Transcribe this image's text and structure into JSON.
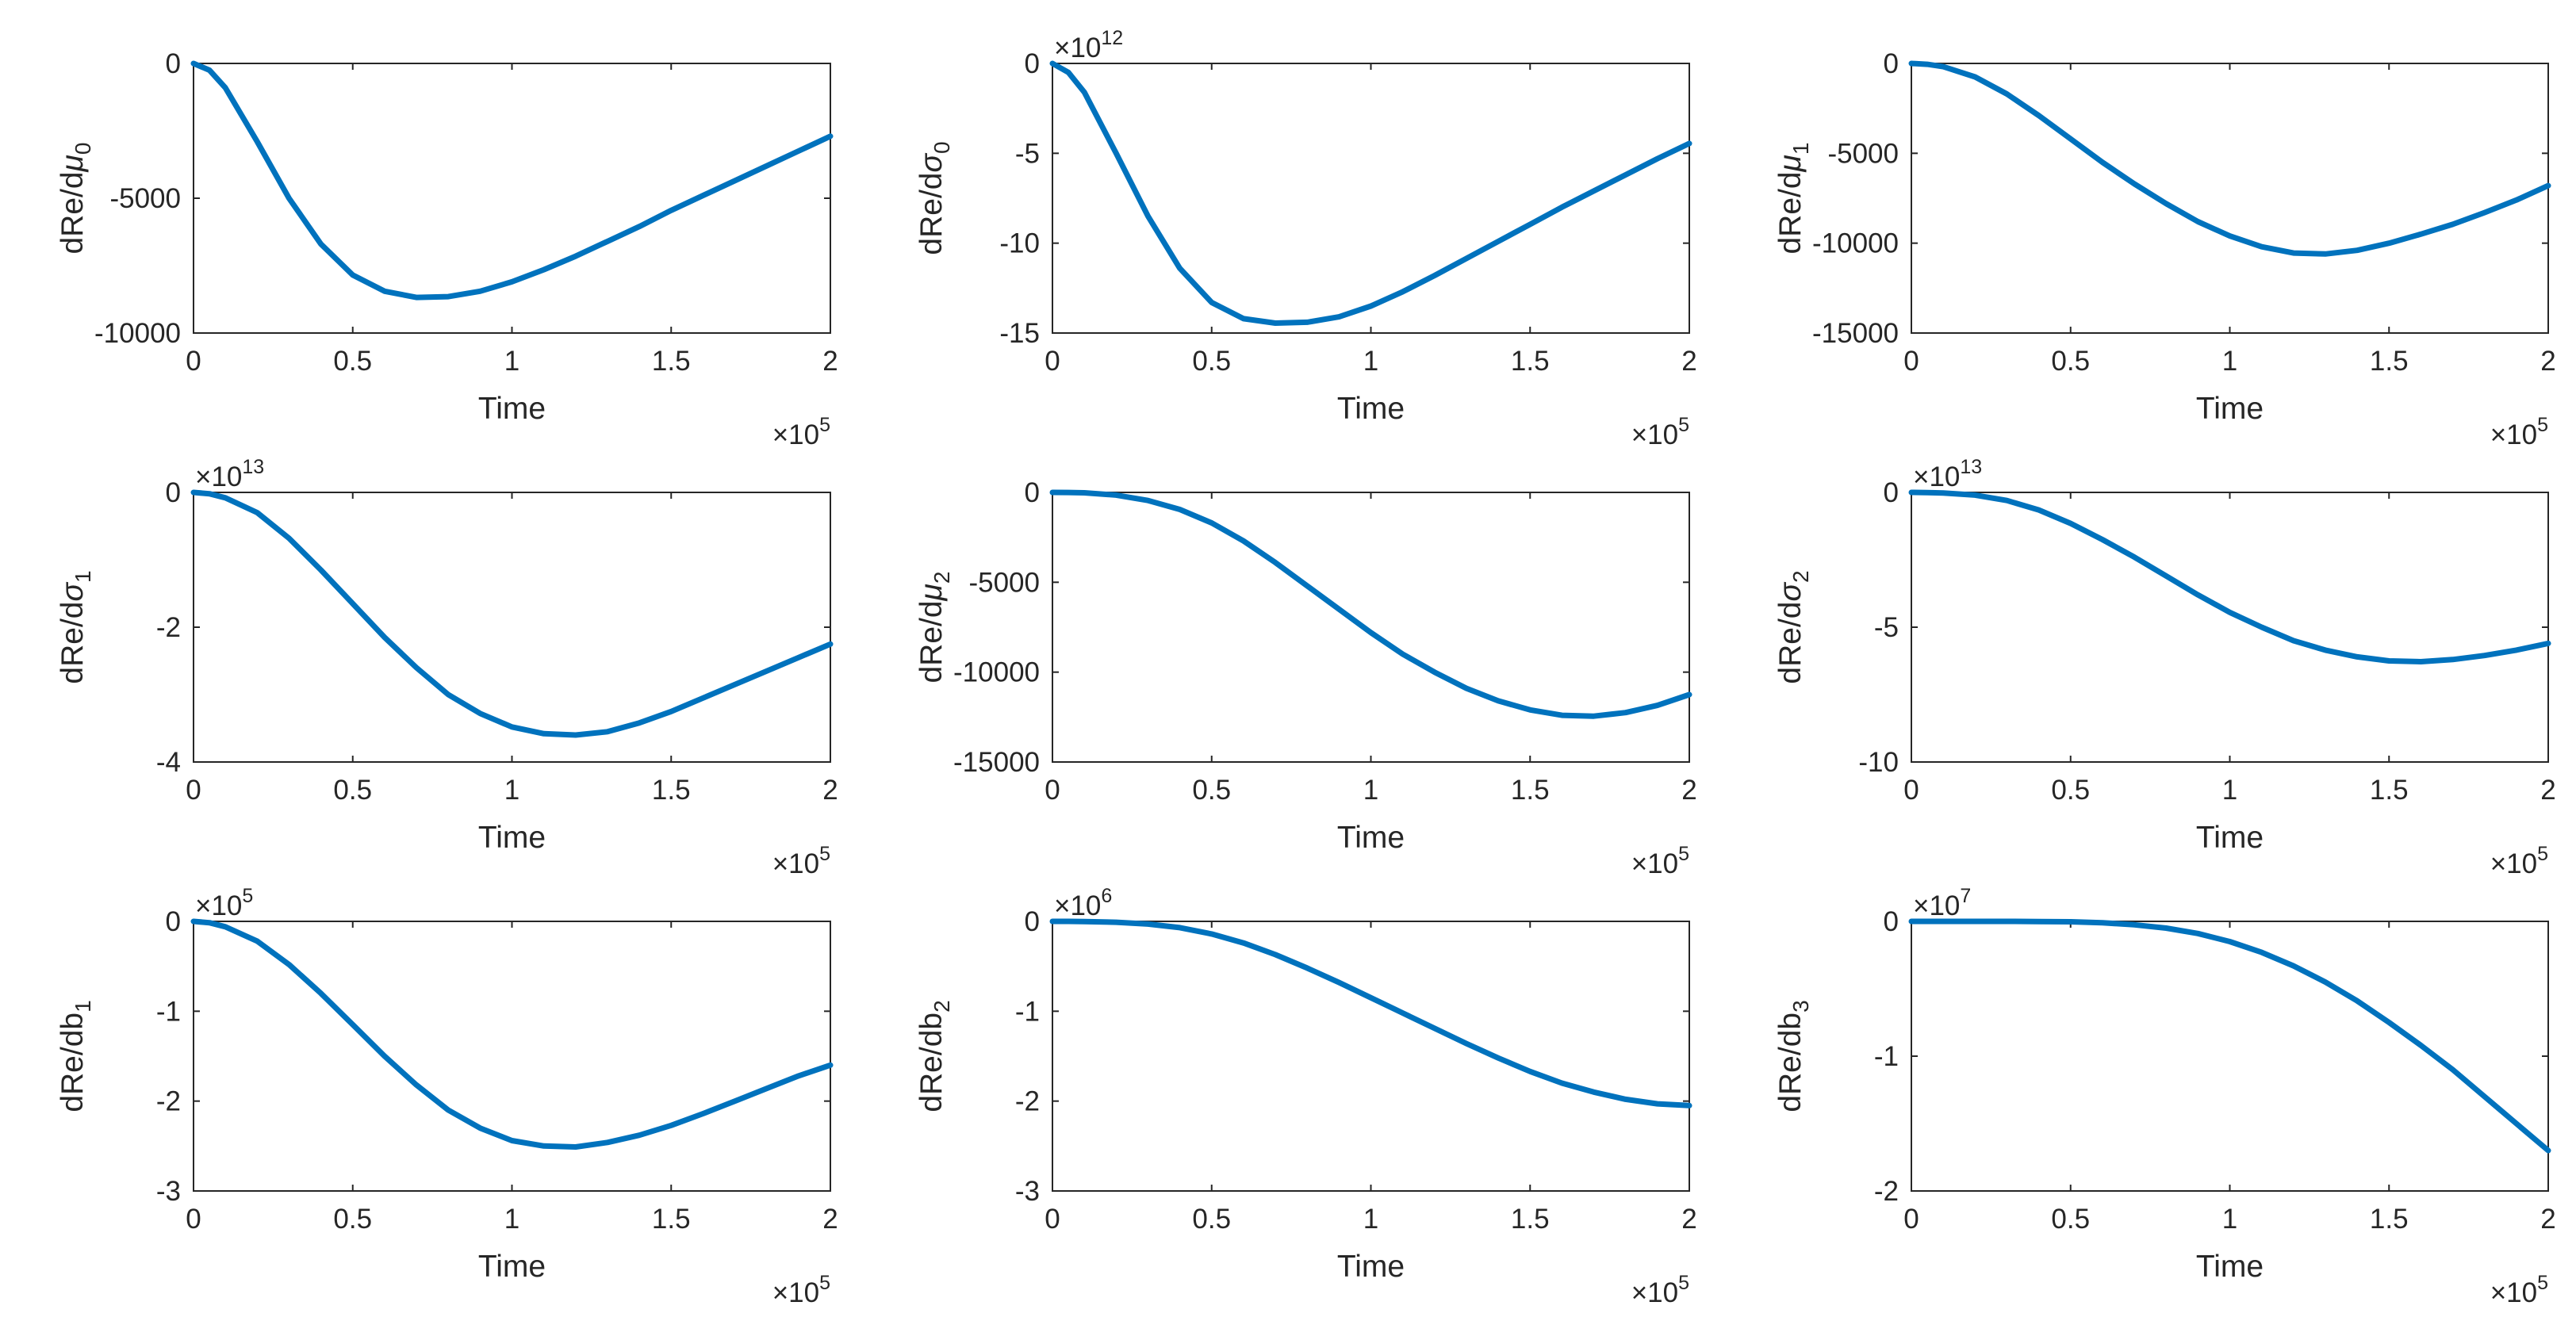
{
  "figure": {
    "series_color": "#0072BD",
    "axis_color": "#262626",
    "background": "#ffffff"
  },
  "chart_data": [
    {
      "type": "line",
      "ylabel_base": "dRe/d",
      "ylabel_symbol": "μ",
      "ylabel_sub": "0",
      "xlabel": "Time",
      "x_exponent": "5",
      "y_exponent": "",
      "xlim": [
        0,
        2
      ],
      "ylim": [
        -10000,
        0
      ],
      "xticks": [
        0,
        0.5,
        1,
        1.5,
        2
      ],
      "xtick_labels": [
        "0",
        "0.5",
        "1",
        "1.5",
        "2"
      ],
      "yticks": [
        -10000,
        -5000,
        0
      ],
      "ytick_labels": [
        "-10000",
        "-5000",
        "0"
      ],
      "x": [
        0,
        0.05,
        0.1,
        0.2,
        0.3,
        0.4,
        0.5,
        0.6,
        0.7,
        0.8,
        0.9,
        1.0,
        1.1,
        1.2,
        1.3,
        1.4,
        1.5,
        1.6,
        1.7,
        1.8,
        1.9,
        2.0
      ],
      "y": [
        0,
        -250,
        -900,
        -2900,
        -5000,
        -6700,
        -7850,
        -8450,
        -8680,
        -8650,
        -8450,
        -8100,
        -7650,
        -7150,
        -6600,
        -6050,
        -5450,
        -4900,
        -4350,
        -3800,
        -3250,
        -2700
      ]
    },
    {
      "type": "line",
      "ylabel_base": "dRe/d",
      "ylabel_symbol": "σ",
      "ylabel_sub": "0",
      "xlabel": "Time",
      "x_exponent": "5",
      "y_exponent": "12",
      "xlim": [
        0,
        2
      ],
      "ylim": [
        -15,
        0
      ],
      "xticks": [
        0,
        0.5,
        1,
        1.5,
        2
      ],
      "xtick_labels": [
        "0",
        "0.5",
        "1",
        "1.5",
        "2"
      ],
      "yticks": [
        -15,
        -10,
        -5,
        0
      ],
      "ytick_labels": [
        "-15",
        "-10",
        "-5",
        "0"
      ],
      "x": [
        0,
        0.05,
        0.1,
        0.2,
        0.3,
        0.4,
        0.5,
        0.6,
        0.7,
        0.8,
        0.9,
        1.0,
        1.1,
        1.2,
        1.3,
        1.4,
        1.5,
        1.6,
        1.7,
        1.8,
        1.9,
        2.0
      ],
      "y": [
        0,
        -0.5,
        -1.6,
        -5.0,
        -8.5,
        -11.4,
        -13.3,
        -14.2,
        -14.45,
        -14.4,
        -14.1,
        -13.5,
        -12.7,
        -11.8,
        -10.85,
        -9.9,
        -8.95,
        -8.0,
        -7.1,
        -6.2,
        -5.3,
        -4.45
      ]
    },
    {
      "type": "line",
      "ylabel_base": "dRe/d",
      "ylabel_symbol": "μ",
      "ylabel_sub": "1",
      "xlabel": "Time",
      "x_exponent": "5",
      "y_exponent": "",
      "xlim": [
        0,
        2
      ],
      "ylim": [
        -15000,
        0
      ],
      "xticks": [
        0,
        0.5,
        1,
        1.5,
        2
      ],
      "xtick_labels": [
        "0",
        "0.5",
        "1",
        "1.5",
        "2"
      ],
      "yticks": [
        -15000,
        -10000,
        -5000,
        0
      ],
      "ytick_labels": [
        "-15000",
        "-10000",
        "-5000",
        "0"
      ],
      "x": [
        0,
        0.05,
        0.1,
        0.2,
        0.3,
        0.4,
        0.5,
        0.6,
        0.7,
        0.8,
        0.9,
        1.0,
        1.1,
        1.2,
        1.3,
        1.4,
        1.5,
        1.6,
        1.7,
        1.8,
        1.9,
        2.0
      ],
      "y": [
        0,
        -50,
        -180,
        -750,
        -1700,
        -2900,
        -4200,
        -5500,
        -6700,
        -7800,
        -8800,
        -9600,
        -10200,
        -10550,
        -10600,
        -10400,
        -10000,
        -9500,
        -8950,
        -8300,
        -7600,
        -6800
      ]
    },
    {
      "type": "line",
      "ylabel_base": "dRe/d",
      "ylabel_symbol": "σ",
      "ylabel_sub": "1",
      "xlabel": "Time",
      "x_exponent": "5",
      "y_exponent": "13",
      "xlim": [
        0,
        2
      ],
      "ylim": [
        -4,
        0
      ],
      "xticks": [
        0,
        0.5,
        1,
        1.5,
        2
      ],
      "xtick_labels": [
        "0",
        "0.5",
        "1",
        "1.5",
        "2"
      ],
      "yticks": [
        -4,
        -2,
        0
      ],
      "ytick_labels": [
        "-4",
        "-2",
        "0"
      ],
      "x": [
        0,
        0.05,
        0.1,
        0.2,
        0.3,
        0.4,
        0.5,
        0.6,
        0.7,
        0.8,
        0.9,
        1.0,
        1.1,
        1.2,
        1.3,
        1.4,
        1.5,
        1.6,
        1.7,
        1.8,
        1.9,
        2.0
      ],
      "y": [
        0,
        -0.02,
        -0.08,
        -0.3,
        -0.68,
        -1.15,
        -1.65,
        -2.15,
        -2.6,
        -3.0,
        -3.28,
        -3.48,
        -3.58,
        -3.6,
        -3.55,
        -3.42,
        -3.25,
        -3.05,
        -2.85,
        -2.65,
        -2.45,
        -2.25
      ]
    },
    {
      "type": "line",
      "ylabel_base": "dRe/d",
      "ylabel_symbol": "μ",
      "ylabel_sub": "2",
      "xlabel": "Time",
      "x_exponent": "5",
      "y_exponent": "",
      "xlim": [
        0,
        2
      ],
      "ylim": [
        -15000,
        0
      ],
      "xticks": [
        0,
        0.5,
        1,
        1.5,
        2
      ],
      "xtick_labels": [
        "0",
        "0.5",
        "1",
        "1.5",
        "2"
      ],
      "yticks": [
        -15000,
        -10000,
        -5000,
        0
      ],
      "ytick_labels": [
        "-15000",
        "-10000",
        "-5000",
        "0"
      ],
      "x": [
        0,
        0.05,
        0.1,
        0.2,
        0.3,
        0.4,
        0.5,
        0.6,
        0.7,
        0.8,
        0.9,
        1.0,
        1.1,
        1.2,
        1.3,
        1.4,
        1.5,
        1.6,
        1.7,
        1.8,
        1.9,
        2.0
      ],
      "y": [
        0,
        -5,
        -20,
        -150,
        -450,
        -950,
        -1700,
        -2700,
        -3900,
        -5200,
        -6500,
        -7800,
        -9000,
        -10000,
        -10900,
        -11600,
        -12100,
        -12400,
        -12450,
        -12250,
        -11850,
        -11250
      ]
    },
    {
      "type": "line",
      "ylabel_base": "dRe/d",
      "ylabel_symbol": "σ",
      "ylabel_sub": "2",
      "xlabel": "Time",
      "x_exponent": "5",
      "y_exponent": "13",
      "xlim": [
        0,
        2
      ],
      "ylim": [
        -10,
        0
      ],
      "xticks": [
        0,
        0.5,
        1,
        1.5,
        2
      ],
      "xtick_labels": [
        "0",
        "0.5",
        "1",
        "1.5",
        "2"
      ],
      "yticks": [
        -10,
        -5,
        0
      ],
      "ytick_labels": [
        "-10",
        "-5",
        "0"
      ],
      "x": [
        0,
        0.05,
        0.1,
        0.2,
        0.3,
        0.4,
        0.5,
        0.6,
        0.7,
        0.8,
        0.9,
        1.0,
        1.1,
        1.2,
        1.3,
        1.4,
        1.5,
        1.6,
        1.7,
        1.8,
        1.9,
        2.0
      ],
      "y": [
        0,
        -0.005,
        -0.02,
        -0.1,
        -0.3,
        -0.65,
        -1.15,
        -1.75,
        -2.4,
        -3.1,
        -3.8,
        -4.45,
        -5.0,
        -5.5,
        -5.85,
        -6.1,
        -6.25,
        -6.28,
        -6.2,
        -6.05,
        -5.85,
        -5.6
      ]
    },
    {
      "type": "line",
      "ylabel_base": "dRe/db",
      "ylabel_symbol": "",
      "ylabel_sub": "1",
      "xlabel": "Time",
      "x_exponent": "5",
      "y_exponent": "5",
      "xlim": [
        0,
        2
      ],
      "ylim": [
        -3,
        0
      ],
      "xticks": [
        0,
        0.5,
        1,
        1.5,
        2
      ],
      "xtick_labels": [
        "0",
        "0.5",
        "1",
        "1.5",
        "2"
      ],
      "yticks": [
        -3,
        -2,
        -1,
        0
      ],
      "ytick_labels": [
        "-3",
        "-2",
        "-1",
        "0"
      ],
      "x": [
        0,
        0.05,
        0.1,
        0.2,
        0.3,
        0.4,
        0.5,
        0.6,
        0.7,
        0.8,
        0.9,
        1.0,
        1.1,
        1.2,
        1.3,
        1.4,
        1.5,
        1.6,
        1.7,
        1.8,
        1.9,
        2.0
      ],
      "y": [
        0,
        -0.015,
        -0.06,
        -0.22,
        -0.48,
        -0.8,
        -1.15,
        -1.5,
        -1.82,
        -2.1,
        -2.3,
        -2.44,
        -2.5,
        -2.51,
        -2.46,
        -2.38,
        -2.27,
        -2.14,
        -2.0,
        -1.86,
        -1.72,
        -1.6
      ]
    },
    {
      "type": "line",
      "ylabel_base": "dRe/db",
      "ylabel_symbol": "",
      "ylabel_sub": "2",
      "xlabel": "Time",
      "x_exponent": "5",
      "y_exponent": "6",
      "xlim": [
        0,
        2
      ],
      "ylim": [
        -3,
        0
      ],
      "xticks": [
        0,
        0.5,
        1,
        1.5,
        2
      ],
      "xtick_labels": [
        "0",
        "0.5",
        "1",
        "1.5",
        "2"
      ],
      "yticks": [
        -3,
        -2,
        -1,
        0
      ],
      "ytick_labels": [
        "-3",
        "-2",
        "-1",
        "0"
      ],
      "x": [
        0,
        0.05,
        0.1,
        0.2,
        0.3,
        0.4,
        0.5,
        0.6,
        0.7,
        0.8,
        0.9,
        1.0,
        1.1,
        1.2,
        1.3,
        1.4,
        1.5,
        1.6,
        1.7,
        1.8,
        1.9,
        2.0
      ],
      "y": [
        0,
        0,
        -0.002,
        -0.01,
        -0.03,
        -0.07,
        -0.14,
        -0.24,
        -0.37,
        -0.52,
        -0.68,
        -0.85,
        -1.02,
        -1.19,
        -1.36,
        -1.52,
        -1.67,
        -1.8,
        -1.9,
        -1.98,
        -2.03,
        -2.05
      ]
    },
    {
      "type": "line",
      "ylabel_base": "dRe/db",
      "ylabel_symbol": "",
      "ylabel_sub": "3",
      "xlabel": "Time",
      "x_exponent": "5",
      "y_exponent": "7",
      "xlim": [
        0,
        2
      ],
      "ylim": [
        -2,
        0
      ],
      "xticks": [
        0,
        0.5,
        1,
        1.5,
        2
      ],
      "xtick_labels": [
        "0",
        "0.5",
        "1",
        "1.5",
        "2"
      ],
      "yticks": [
        -2,
        -1,
        0
      ],
      "ytick_labels": [
        "-2",
        "-1",
        "0"
      ],
      "x": [
        0,
        0.1,
        0.2,
        0.3,
        0.4,
        0.5,
        0.6,
        0.7,
        0.8,
        0.9,
        1.0,
        1.1,
        1.2,
        1.3,
        1.4,
        1.5,
        1.6,
        1.7,
        1.8,
        1.9,
        2.0
      ],
      "y": [
        0,
        0,
        0,
        0,
        -0.001,
        -0.003,
        -0.01,
        -0.025,
        -0.05,
        -0.09,
        -0.15,
        -0.23,
        -0.33,
        -0.45,
        -0.59,
        -0.75,
        -0.92,
        -1.1,
        -1.3,
        -1.5,
        -1.7
      ]
    }
  ]
}
